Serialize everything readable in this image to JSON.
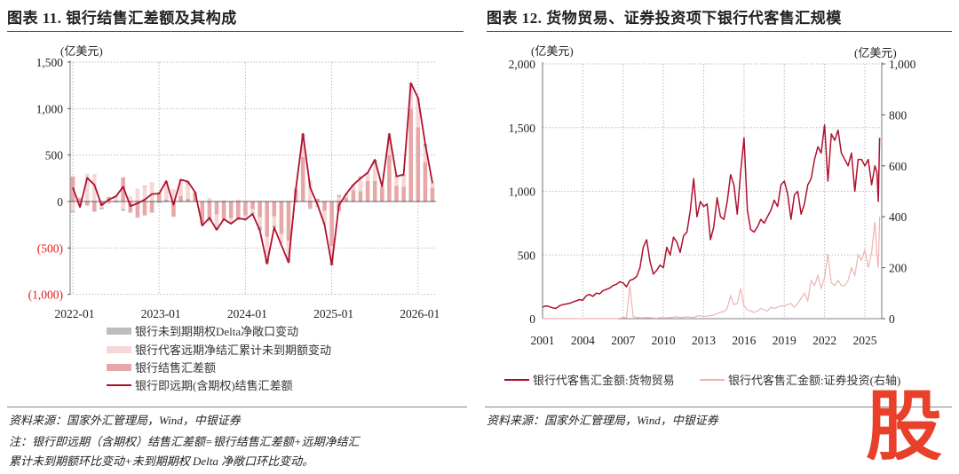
{
  "left": {
    "title": "图表 11. 银行结售汇差额及其构成",
    "source": "资料来源：国家外汇管理局，Wind，中银证券",
    "note_line1": "注：银行即远期（含期权）结售汇差额=银行结售汇差额+远期净结汇",
    "note_line2": "累计未到期额环比变动+未到期期权 Delta 净敞口环比变动。"
  },
  "right": {
    "title": "图表 12. 货物贸易、证券投资项下银行代客售汇规模",
    "source": "资料来源：国家外汇管理局，Wind，中银证券"
  },
  "watermark": "股",
  "colors": {
    "line": "#b0102e",
    "settle": "#e8a7a7",
    "forward": "#f7d6d6",
    "delta": "#bdbdbd",
    "sec": "#f0b3b3",
    "neg": "#e8151b"
  },
  "chart_data": [
    {
      "type": "bar",
      "title": "银行结售汇差额及其构成",
      "ylabel": "(亿美元)",
      "ylim": [
        -1000,
        1500
      ],
      "yticks": [
        1500,
        1000,
        500,
        0,
        -500,
        -1000
      ],
      "ytick_labels": [
        "1,500",
        "1,000",
        "500",
        "0",
        "(500)",
        "(1,000)"
      ],
      "xtick_labels": [
        "2022-01",
        "2023-01",
        "2024-01",
        "2025-01",
        "2026-01"
      ],
      "xtick_index": [
        0,
        12,
        24,
        36,
        48
      ],
      "x_start": "2022-01",
      "x_end": "2026-03",
      "grid": true,
      "legend_position": "bottom",
      "series": [
        {
          "name": "银行未到期期权Delta净敞口变动",
          "kind": "stacked-bar",
          "values": [
            -20,
            -20,
            -5,
            0,
            -20,
            -5,
            5,
            -20,
            -10,
            -15,
            10,
            5,
            -10,
            0,
            -5,
            15,
            35,
            0,
            0,
            -15,
            -25,
            0,
            -20,
            -10,
            -15,
            -15,
            -40,
            -50,
            -20,
            0,
            -35,
            -10,
            30,
            -10,
            -10,
            0,
            -30,
            20,
            0,
            0,
            20,
            0,
            50,
            0,
            10,
            0,
            20,
            15,
            5,
            30,
            10
          ]
        },
        {
          "name": "银行代客远期净结汇累计未到期额变动",
          "kind": "stacked-bar",
          "values": [
            -100,
            -20,
            300,
            290,
            -15,
            -20,
            60,
            -80,
            60,
            140,
            160,
            200,
            -10,
            200,
            130,
            160,
            150,
            0,
            -20,
            40,
            -140,
            10,
            -40,
            20,
            -30,
            -40,
            -100,
            -240,
            -100,
            -100,
            -200,
            10,
            220,
            230,
            -50,
            -150,
            -180,
            50,
            40,
            60,
            140,
            90,
            180,
            10,
            220,
            100,
            110,
            260,
            310,
            170,
            40
          ]
        },
        {
          "name": "银行结售汇差额",
          "kind": "stacked-bar",
          "values": [
            270,
            40,
            -40,
            -110,
            -50,
            50,
            -10,
            260,
            -110,
            -160,
            -150,
            -120,
            100,
            20,
            -160,
            60,
            30,
            100,
            -240,
            -200,
            -140,
            -200,
            -180,
            -190,
            -150,
            -80,
            -170,
            -380,
            -160,
            -350,
            -420,
            130,
            480,
            -70,
            30,
            -100,
            -480,
            -100,
            40,
            120,
            110,
            220,
            220,
            150,
            500,
            170,
            160,
            1000,
            800,
            420,
            150
          ]
        },
        {
          "name": "银行即远期(含期权)结售汇差额",
          "kind": "line",
          "values": [
            150,
            -60,
            255,
            180,
            -40,
            20,
            55,
            160,
            -50,
            -20,
            20,
            80,
            85,
            220,
            -35,
            235,
            215,
            100,
            -260,
            -175,
            -305,
            -190,
            -240,
            -180,
            -195,
            -135,
            -310,
            -670,
            -280,
            -470,
            -655,
            130,
            730,
            150,
            -30,
            -250,
            -680,
            -40,
            80,
            180,
            250,
            310,
            450,
            160,
            730,
            270,
            290,
            1275,
            1115,
            620,
            200
          ]
        }
      ]
    },
    {
      "type": "line",
      "title": "货物贸易、证券投资项下银行代客售汇规模",
      "ylabel": "(亿美元)",
      "ylabel_right": "(亿美元)",
      "ylim": [
        0,
        2000
      ],
      "ylim_right": [
        0,
        1000
      ],
      "yticks": [
        0,
        500,
        1000,
        1500,
        2000
      ],
      "ytick_labels": [
        "0",
        "500",
        "1,000",
        "1,500",
        "2,000"
      ],
      "yticks_right": [
        0,
        200,
        400,
        600,
        800,
        1000
      ],
      "ytick_labels_right": [
        "0",
        "200",
        "400",
        "600",
        "800",
        "1,000"
      ],
      "xticks": [
        2001,
        2004,
        2007,
        2010,
        2013,
        2016,
        2019,
        2022,
        2025
      ],
      "xtick_labels": [
        "2001",
        "2004",
        "2007",
        "2010",
        "2013",
        "2016",
        "2019",
        "2022",
        "2025"
      ],
      "grid": true,
      "legend_position": "bottom",
      "x": [
        2001,
        2001.25,
        2001.5,
        2001.75,
        2002,
        2002.25,
        2002.5,
        2002.75,
        2003,
        2003.25,
        2003.5,
        2003.75,
        2004,
        2004.25,
        2004.5,
        2004.75,
        2005,
        2005.25,
        2005.5,
        2005.75,
        2006,
        2006.25,
        2006.5,
        2006.75,
        2007,
        2007.25,
        2007.5,
        2007.75,
        2008,
        2008.25,
        2008.5,
        2008.75,
        2009,
        2009.25,
        2009.5,
        2009.75,
        2010,
        2010.25,
        2010.5,
        2010.75,
        2011,
        2011.25,
        2011.5,
        2011.75,
        2012,
        2012.25,
        2012.5,
        2012.75,
        2013,
        2013.25,
        2013.5,
        2013.75,
        2014,
        2014.25,
        2014.5,
        2014.75,
        2015,
        2015.25,
        2015.5,
        2015.75,
        2016,
        2016.25,
        2016.5,
        2016.75,
        2017,
        2017.25,
        2017.5,
        2017.75,
        2018,
        2018.25,
        2018.5,
        2018.75,
        2019,
        2019.25,
        2019.5,
        2019.75,
        2020,
        2020.25,
        2020.5,
        2020.75,
        2021,
        2021.25,
        2021.5,
        2021.75,
        2022,
        2022.25,
        2022.5,
        2022.75,
        2023,
        2023.25,
        2023.5,
        2023.75,
        2024,
        2024.25,
        2024.5,
        2024.75,
        2025,
        2025.25,
        2025.5,
        2025.75,
        2025.9,
        2026.0,
        2026.1
      ],
      "series": [
        {
          "name": "银行代客售汇金额:货物贸易",
          "axis": "left",
          "values": [
            90,
            100,
            95,
            85,
            80,
            100,
            110,
            115,
            120,
            130,
            140,
            150,
            145,
            180,
            190,
            175,
            200,
            195,
            220,
            230,
            240,
            260,
            270,
            290,
            280,
            250,
            300,
            310,
            330,
            400,
            560,
            620,
            450,
            350,
            380,
            420,
            400,
            560,
            500,
            640,
            600,
            520,
            650,
            680,
            850,
            1100,
            800,
            920,
            880,
            900,
            620,
            720,
            950,
            800,
            780,
            920,
            1130,
            1050,
            820,
            1150,
            1420,
            850,
            700,
            680,
            720,
            780,
            750,
            800,
            850,
            930,
            880,
            1050,
            1080,
            980,
            780,
            970,
            1000,
            820,
            900,
            1050,
            1100,
            1250,
            1350,
            1300,
            1520,
            1080,
            1450,
            1400,
            1480,
            1300,
            1250,
            1200,
            1300,
            1000,
            1250,
            1250,
            1200,
            1250,
            1050,
            1200,
            1150,
            920,
            1420
          ]
        },
        {
          "name": "银行代客售汇金额:证券投资(右轴)",
          "axis": "right",
          "values": [
            0,
            0,
            0,
            0,
            0,
            0,
            0,
            0,
            0,
            0,
            0,
            0,
            0,
            0,
            0,
            0,
            0,
            0,
            0,
            0,
            0,
            0,
            0,
            2,
            5,
            3,
            130,
            8,
            5,
            4,
            3,
            5,
            4,
            3,
            2,
            4,
            3,
            3,
            5,
            6,
            8,
            5,
            6,
            8,
            6,
            5,
            10,
            12,
            8,
            10,
            12,
            15,
            20,
            25,
            28,
            40,
            90,
            55,
            60,
            120,
            50,
            35,
            30,
            25,
            30,
            40,
            35,
            30,
            45,
            40,
            45,
            50,
            50,
            55,
            60,
            45,
            60,
            80,
            100,
            70,
            150,
            130,
            170,
            120,
            160,
            255,
            140,
            130,
            150,
            130,
            130,
            150,
            200,
            170,
            250,
            230,
            270,
            200,
            260,
            380,
            250,
            200,
            400
          ]
        }
      ]
    }
  ]
}
